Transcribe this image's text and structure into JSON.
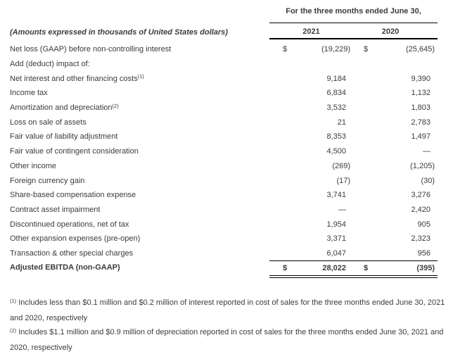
{
  "colors": {
    "text": "#3b3b3b",
    "rule": "#000000",
    "background": "#ffffff"
  },
  "dollar_sign": "$",
  "header": {
    "period": "For the three months ended June 30,",
    "amounts_note": "(Amounts expressed in thousands of United States dollars)",
    "years": [
      "2021",
      "2020"
    ]
  },
  "rows": [
    {
      "label": "Net loss (GAAP) before non-controlling interest",
      "dollar": true,
      "v": [
        "(19,229)",
        "(25,645)"
      ]
    },
    {
      "label": "Add (deduct) impact of:",
      "v": null
    },
    {
      "label": "Net interest and other financing costs",
      "sup": "(1)",
      "v": [
        "9,184",
        "9,390"
      ]
    },
    {
      "label": "Income tax",
      "v": [
        "6,834",
        "1,132"
      ]
    },
    {
      "label": "Amortization and depreciation",
      "sup": "(2)",
      "v": [
        "3,532",
        "1,803"
      ]
    },
    {
      "label": "Loss on sale of assets",
      "v": [
        "21",
        "2,783"
      ]
    },
    {
      "label": "Fair value of liability adjustment",
      "v": [
        "8,353",
        "1,497"
      ]
    },
    {
      "label": "Fair value of contingent consideration",
      "v": [
        "4,500",
        "—"
      ]
    },
    {
      "label": "Other income",
      "v": [
        "(269)",
        "(1,205)"
      ]
    },
    {
      "label": "Foreign currency gain",
      "v": [
        "(17)",
        "(30)"
      ]
    },
    {
      "label": "Share-based compensation expense",
      "v": [
        "3,741",
        "3,276"
      ]
    },
    {
      "label": "Contract asset impairment",
      "v": [
        "—",
        "2,420"
      ]
    },
    {
      "label": "Discontinued operations, net of tax",
      "v": [
        "1,954",
        "905"
      ]
    },
    {
      "label": "Other expansion expenses (pre-open)",
      "v": [
        "3,371",
        "2,323"
      ]
    },
    {
      "label": "Transaction & other special charges",
      "v": [
        "6,047",
        "956"
      ]
    },
    {
      "label": "Adjusted EBITDA (non-GAAP)",
      "dollar": true,
      "bold": true,
      "total": true,
      "v": [
        "28,022",
        "(395)"
      ]
    }
  ],
  "footnotes": [
    {
      "sup": "(1)",
      "lines": [
        "Includes less than $0.1 million and $0.2 million of interest reported in cost of sales for the three months ended June 30, 2021",
        "and 2020, respectively"
      ]
    },
    {
      "sup": "(2)",
      "lines": [
        "Includes $1.1 million and $0.9 million of depreciation reported in cost of sales for the three months ended June 30, 2021 and",
        "2020, respectively"
      ]
    }
  ]
}
